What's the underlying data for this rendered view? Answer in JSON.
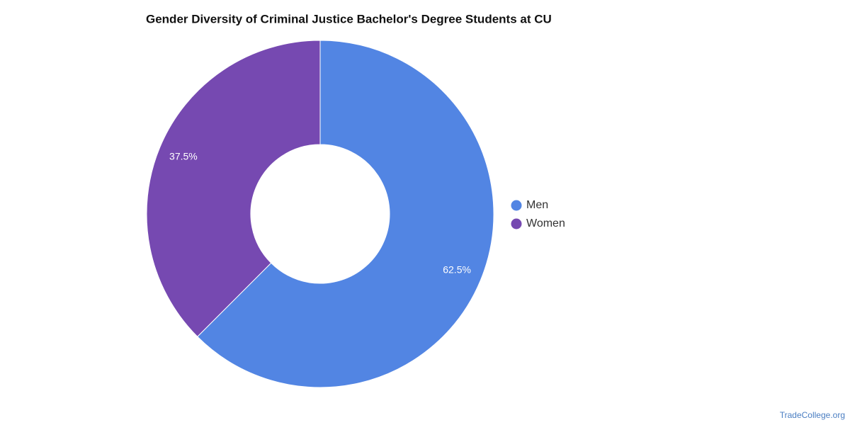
{
  "chart_data": {
    "type": "pie",
    "title": "Gender Diversity of Criminal Justice Bachelor's Degree Students at CU",
    "categories": [
      "Men",
      "Women"
    ],
    "values": [
      62.5,
      37.5
    ],
    "value_labels": [
      "62.5%",
      "37.5%"
    ],
    "colors": [
      "#5285e3",
      "#7649b1"
    ],
    "donut": true,
    "legend": "right",
    "source": "TradeCollege.org"
  }
}
